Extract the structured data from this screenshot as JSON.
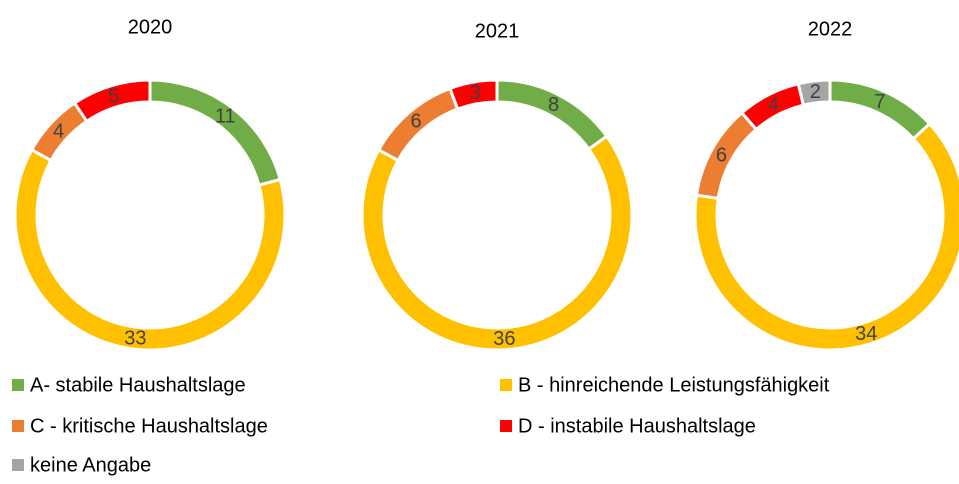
{
  "chart_data": [
    {
      "type": "pie",
      "title": "2020",
      "categories": [
        "A- stabile Haushaltslage",
        "B - hinreichende Leistungsfähigkeit",
        "C - kritische Haushaltslage",
        "D - instabile Haushaltslage"
      ],
      "values": [
        11,
        33,
        4,
        5
      ],
      "colors": [
        "#70ad47",
        "#ffc000",
        "#ed7d31",
        "#ff0000"
      ],
      "donut": true
    },
    {
      "type": "pie",
      "title": "2021",
      "categories": [
        "A- stabile Haushaltslage",
        "B - hinreichende Leistungsfähigkeit",
        "C - kritische Haushaltslage",
        "D - instabile Haushaltslage"
      ],
      "values": [
        8,
        36,
        6,
        3
      ],
      "colors": [
        "#70ad47",
        "#ffc000",
        "#ed7d31",
        "#ff0000"
      ],
      "donut": true
    },
    {
      "type": "pie",
      "title": "2022",
      "categories": [
        "A- stabile Haushaltslage",
        "B - hinreichende Leistungsfähigkeit",
        "C - kritische Haushaltslage",
        "D - instabile Haushaltslage",
        "keine Angabe"
      ],
      "values": [
        7,
        34,
        6,
        4,
        2
      ],
      "colors": [
        "#70ad47",
        "#ffc000",
        "#ed7d31",
        "#ff0000",
        "#a5a5a5"
      ],
      "donut": true
    }
  ]
}
